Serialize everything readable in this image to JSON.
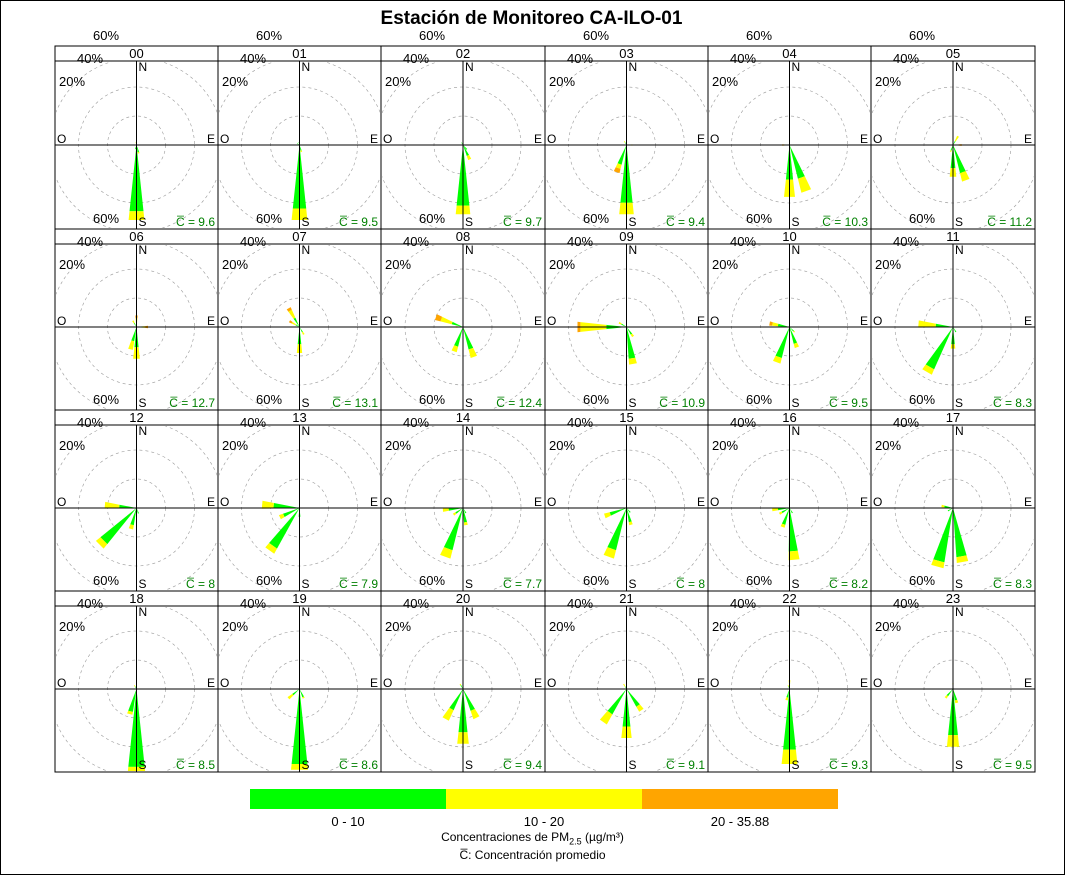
{
  "title": "Estación de Monitoreo CA-ILO-01",
  "colors": {
    "bin1": "#00ff00",
    "bin2": "#ffff00",
    "bin3": "#ffa500",
    "stat": "#008000"
  },
  "legend": {
    "bins": [
      "0  -  10",
      "10  -  20",
      "20  -  35.88"
    ],
    "pollutant_label_prefix": "Concentraciones de PM",
    "pollutant_subscript": "2.5",
    "pollutant_units": " (µg/m³)",
    "mean_note": "C̅: Concentración promedio"
  },
  "chart_data": {
    "type": "windrose",
    "panel_type": "polar-stacked",
    "rings": [
      "20%",
      "40%",
      "60%"
    ],
    "ring_values": [
      20,
      40,
      60
    ],
    "compass": {
      "n": "N",
      "s": "S",
      "e": "E",
      "w": "O"
    },
    "mean_prefix": "C̅ = ",
    "bin_names": [
      "0 - 10",
      "10 - 20",
      "20 - 35.88"
    ],
    "panels": [
      {
        "hour": "00",
        "mean": "9.6",
        "petals": [
          {
            "dir": 180,
            "v": [
              46,
              6,
              0
            ]
          },
          {
            "dir": 165,
            "v": [
              5,
              1,
              0
            ]
          },
          {
            "dir": 195,
            "v": [
              3,
              0,
              0
            ]
          },
          {
            "dir": 0,
            "v": [
              2,
              0,
              0
            ]
          },
          {
            "dir": 345,
            "v": [
              1,
              1,
              0
            ]
          }
        ]
      },
      {
        "hour": "01",
        "mean": "9.5",
        "petals": [
          {
            "dir": 180,
            "v": [
              44,
              8,
              0
            ]
          },
          {
            "dir": 165,
            "v": [
              4,
              1,
              0
            ]
          },
          {
            "dir": 345,
            "v": [
              2,
              0,
              0
            ]
          },
          {
            "dir": 300,
            "v": [
              2,
              0,
              0
            ]
          }
        ]
      },
      {
        "hour": "02",
        "mean": "9.7",
        "petals": [
          {
            "dir": 180,
            "v": [
              42,
              6,
              0
            ]
          },
          {
            "dir": 155,
            "v": [
              8,
              3,
              0
            ]
          },
          {
            "dir": 140,
            "v": [
              4,
              0,
              0
            ]
          },
          {
            "dir": 330,
            "v": [
              2,
              0,
              0
            ]
          }
        ]
      },
      {
        "hour": "03",
        "mean": "9.4",
        "petals": [
          {
            "dir": 180,
            "v": [
              40,
              8,
              0
            ]
          },
          {
            "dir": 200,
            "v": [
              14,
              3,
              3
            ]
          },
          {
            "dir": 90,
            "v": [
              3,
              1,
              0
            ]
          },
          {
            "dir": 330,
            "v": [
              2,
              1,
              0
            ]
          }
        ]
      },
      {
        "hour": "04",
        "mean": "10.3",
        "petals": [
          {
            "dir": 180,
            "v": [
              24,
              12,
              0
            ]
          },
          {
            "dir": 160,
            "v": [
              24,
              10,
              0
            ]
          },
          {
            "dir": 270,
            "v": [
              3,
              1,
              1
            ]
          },
          {
            "dir": 90,
            "v": [
              2,
              1,
              0
            ]
          }
        ]
      },
      {
        "hour": "05",
        "mean": "11.2",
        "petals": [
          {
            "dir": 180,
            "v": [
              16,
              6,
              0
            ]
          },
          {
            "dir": 160,
            "v": [
              20,
              6,
              0
            ]
          },
          {
            "dir": 90,
            "v": [
              2,
              2,
              2
            ]
          },
          {
            "dir": 30,
            "v": [
              3,
              4,
              0
            ]
          },
          {
            "dir": 200,
            "v": [
              4,
              1,
              0
            ]
          }
        ]
      },
      {
        "hour": "06",
        "mean": "12.7",
        "petals": [
          {
            "dir": 180,
            "v": [
              14,
              8,
              0
            ]
          },
          {
            "dir": 195,
            "v": [
              10,
              6,
              0
            ]
          },
          {
            "dir": 90,
            "v": [
              4,
              2,
              2
            ]
          },
          {
            "dir": 0,
            "v": [
              3,
              3,
              2
            ]
          },
          {
            "dir": 330,
            "v": [
              3,
              2,
              0
            ]
          },
          {
            "dir": 270,
            "v": [
              2,
              1,
              0
            ]
          }
        ]
      },
      {
        "hour": "07",
        "mean": "13.1",
        "petals": [
          {
            "dir": 180,
            "v": [
              12,
              6,
              0
            ]
          },
          {
            "dir": 330,
            "v": [
              7,
              6,
              2
            ]
          },
          {
            "dir": 150,
            "v": [
              4,
              2,
              0
            ]
          },
          {
            "dir": 300,
            "v": [
              3,
              3,
              2
            ]
          }
        ]
      },
      {
        "hour": "08",
        "mean": "12.4",
        "petals": [
          {
            "dir": 160,
            "v": [
              16,
              6,
              0
            ]
          },
          {
            "dir": 200,
            "v": [
              14,
              4,
              0
            ]
          },
          {
            "dir": 290,
            "v": [
              8,
              8,
              4
            ]
          },
          {
            "dir": 270,
            "v": [
              3,
              2,
              0
            ]
          }
        ]
      },
      {
        "hour": "09",
        "mean": "10.9",
        "petals": [
          {
            "dir": 270,
            "v": [
              14,
              18,
              2
            ]
          },
          {
            "dir": 170,
            "v": [
              22,
              4,
              0
            ]
          },
          {
            "dir": 145,
            "v": [
              6,
              2,
              0
            ]
          },
          {
            "dir": 300,
            "v": [
              4,
              2,
              0
            ]
          }
        ]
      },
      {
        "hour": "10",
        "mean": "9.5",
        "petals": [
          {
            "dir": 200,
            "v": [
              22,
              4,
              0
            ]
          },
          {
            "dir": 160,
            "v": [
              12,
              3,
              0
            ]
          },
          {
            "dir": 280,
            "v": [
              8,
              4,
              2
            ]
          },
          {
            "dir": 135,
            "v": [
              4,
              1,
              0
            ]
          }
        ]
      },
      {
        "hour": "11",
        "mean": "8.3",
        "petals": [
          {
            "dir": 210,
            "v": [
              32,
              4,
              0
            ]
          },
          {
            "dir": 275,
            "v": [
              12,
              12,
              0
            ]
          },
          {
            "dir": 180,
            "v": [
              12,
              3,
              0
            ]
          },
          {
            "dir": 150,
            "v": [
              4,
              0,
              0
            ]
          }
        ]
      },
      {
        "hour": "12",
        "mean": "8",
        "petals": [
          {
            "dir": 225,
            "v": [
              32,
              4,
              0
            ]
          },
          {
            "dir": 275,
            "v": [
              12,
              10,
              0
            ]
          },
          {
            "dir": 195,
            "v": [
              12,
              3,
              0
            ]
          },
          {
            "dir": 160,
            "v": [
              4,
              0,
              0
            ]
          }
        ]
      },
      {
        "hour": "13",
        "mean": "7.9",
        "petals": [
          {
            "dir": 215,
            "v": [
              32,
              4,
              0
            ]
          },
          {
            "dir": 275,
            "v": [
              18,
              8,
              0
            ]
          },
          {
            "dir": 245,
            "v": [
              12,
              3,
              0
            ]
          },
          {
            "dir": 180,
            "v": [
              6,
              0,
              0
            ]
          }
        ]
      },
      {
        "hour": "14",
        "mean": "7.7",
        "petals": [
          {
            "dir": 200,
            "v": [
              30,
              6,
              0
            ]
          },
          {
            "dir": 265,
            "v": [
              10,
              4,
              0
            ]
          },
          {
            "dir": 170,
            "v": [
              10,
              2,
              0
            ]
          },
          {
            "dir": 235,
            "v": [
              6,
              2,
              0
            ]
          },
          {
            "dir": 150,
            "v": [
              4,
              0,
              0
            ]
          }
        ]
      },
      {
        "hour": "15",
        "mean": "8",
        "petals": [
          {
            "dir": 200,
            "v": [
              30,
              6,
              0
            ]
          },
          {
            "dir": 250,
            "v": [
              12,
              4,
              0
            ]
          },
          {
            "dir": 165,
            "v": [
              10,
              2,
              0
            ]
          },
          {
            "dir": 140,
            "v": [
              4,
              0,
              0
            ]
          }
        ]
      },
      {
        "hour": "16",
        "mean": "8.2",
        "petals": [
          {
            "dir": 175,
            "v": [
              30,
              6,
              0
            ]
          },
          {
            "dir": 200,
            "v": [
              12,
              2,
              0
            ]
          },
          {
            "dir": 265,
            "v": [
              8,
              4,
              0
            ]
          },
          {
            "dir": 240,
            "v": [
              6,
              2,
              0
            ]
          },
          {
            "dir": 150,
            "v": [
              4,
              0,
              0
            ]
          }
        ]
      },
      {
        "hour": "17",
        "mean": "8.3",
        "petals": [
          {
            "dir": 195,
            "v": [
              38,
              4,
              0
            ]
          },
          {
            "dir": 170,
            "v": [
              34,
              4,
              0
            ]
          },
          {
            "dir": 280,
            "v": [
              6,
              2,
              0
            ]
          },
          {
            "dir": 240,
            "v": [
              4,
              0,
              0
            ]
          }
        ]
      },
      {
        "hour": "18",
        "mean": "8.5",
        "petals": [
          {
            "dir": 180,
            "v": [
              54,
              4,
              0
            ]
          },
          {
            "dir": 195,
            "v": [
              16,
              2,
              0
            ]
          },
          {
            "dir": 330,
            "v": [
              2,
              1,
              0
            ]
          }
        ]
      },
      {
        "hour": "19",
        "mean": "8.6",
        "petals": [
          {
            "dir": 180,
            "v": [
              52,
              4,
              0
            ]
          },
          {
            "dir": 230,
            "v": [
              6,
              4,
              0
            ]
          },
          {
            "dir": 155,
            "v": [
              6,
              1,
              0
            ]
          }
        ]
      },
      {
        "hour": "20",
        "mean": "9.4",
        "petals": [
          {
            "dir": 180,
            "v": [
              30,
              8,
              0
            ]
          },
          {
            "dir": 210,
            "v": [
              16,
              8,
              0
            ]
          },
          {
            "dir": 155,
            "v": [
              16,
              6,
              0
            ]
          },
          {
            "dir": 330,
            "v": [
              3,
              1,
              0
            ]
          }
        ]
      },
      {
        "hour": "21",
        "mean": "9.1",
        "petals": [
          {
            "dir": 180,
            "v": [
              26,
              8,
              0
            ]
          },
          {
            "dir": 215,
            "v": [
              20,
              8,
              0
            ]
          },
          {
            "dir": 145,
            "v": [
              14,
              4,
              0
            ]
          },
          {
            "dir": 330,
            "v": [
              2,
              2,
              0
            ]
          }
        ]
      },
      {
        "hour": "22",
        "mean": "9.3",
        "petals": [
          {
            "dir": 180,
            "v": [
              42,
              10,
              0
            ]
          },
          {
            "dir": 195,
            "v": [
              6,
              2,
              0
            ]
          },
          {
            "dir": 0,
            "v": [
              4,
              2,
              0
            ]
          },
          {
            "dir": 340,
            "v": [
              2,
              1,
              0
            ]
          }
        ]
      },
      {
        "hour": "23",
        "mean": "9.5",
        "petals": [
          {
            "dir": 180,
            "v": [
              32,
              8,
              0
            ]
          },
          {
            "dir": 165,
            "v": [
              8,
              2,
              0
            ]
          },
          {
            "dir": 220,
            "v": [
              6,
              2,
              0
            ]
          },
          {
            "dir": 0,
            "v": [
              3,
              1,
              0
            ]
          }
        ]
      }
    ]
  }
}
